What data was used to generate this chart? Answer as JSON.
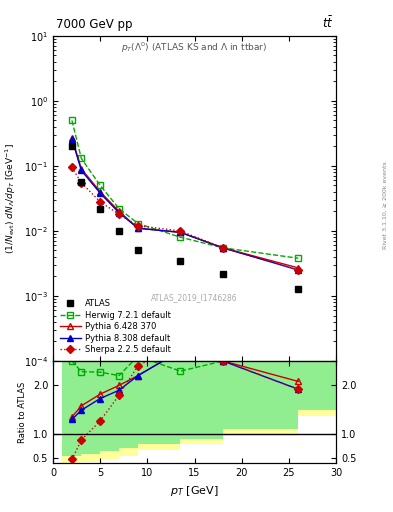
{
  "title_main": "7000 GeV pp",
  "title_right": "t#bar{t}",
  "subtitle": "p_{T}(#Lambda^{0}) (ATLAS KS and #Lambda in ttbar)",
  "watermark": "ATLAS_2019_I1746286",
  "xlabel": "p_{T} [GeV]",
  "ylabel_main": "(1/N_{evt}) dN_{#Lambda}/dp_{T} [GeV^{-1}]",
  "ylabel_ratio": "Ratio to ATLAS",
  "xlim": [
    0,
    30
  ],
  "ylim_main": [
    0.0001,
    10
  ],
  "ylim_ratio": [
    0.4,
    2.5
  ],
  "x_ticks": [
    0,
    5,
    10,
    15,
    20,
    25,
    30
  ],
  "atlas_x": [
    2,
    3,
    5,
    7,
    9,
    13.5,
    18,
    26
  ],
  "atlas_y": [
    0.2,
    0.057,
    0.022,
    0.01,
    0.005,
    0.0035,
    0.0022,
    0.0013
  ],
  "herwig_x": [
    2,
    3,
    5,
    7,
    9,
    13.5,
    18,
    26
  ],
  "herwig_y": [
    0.5,
    0.13,
    0.05,
    0.022,
    0.013,
    0.008,
    0.0055,
    0.0038
  ],
  "pythia6_x": [
    2,
    3,
    5,
    7,
    9,
    13.5,
    18,
    26
  ],
  "pythia6_y": [
    0.27,
    0.09,
    0.04,
    0.02,
    0.011,
    0.0095,
    0.0055,
    0.0027
  ],
  "pythia8_x": [
    2,
    3,
    5,
    7,
    9,
    13.5,
    18,
    26
  ],
  "pythia8_y": [
    0.26,
    0.085,
    0.038,
    0.019,
    0.011,
    0.0095,
    0.0055,
    0.0025
  ],
  "sherpa_x": [
    2,
    3,
    5,
    7,
    9,
    13.5,
    18,
    26
  ],
  "sherpa_y": [
    0.095,
    0.055,
    0.028,
    0.018,
    0.012,
    0.01,
    0.0055,
    0.0025
  ],
  "ratio_herwig": [
    2.5,
    2.28,
    2.27,
    2.2,
    2.6,
    2.29,
    2.5,
    2.92
  ],
  "ratio_pythia6": [
    1.35,
    1.58,
    1.82,
    2.0,
    2.2,
    2.71,
    2.5,
    2.08
  ],
  "ratio_pythia8": [
    1.3,
    1.49,
    1.73,
    1.9,
    2.2,
    2.71,
    2.5,
    1.92
  ],
  "ratio_sherpa": [
    0.48,
    0.88,
    1.27,
    1.8,
    2.4,
    2.86,
    2.5,
    1.92
  ],
  "bin_edges": [
    1,
    2,
    3,
    5,
    7,
    9,
    13.5,
    18,
    26,
    30
  ],
  "green_low": [
    0.55,
    0.55,
    0.6,
    0.65,
    0.72,
    0.8,
    0.9,
    1.1,
    1.5
  ],
  "green_high": [
    2.5,
    2.5,
    2.5,
    2.5,
    2.5,
    2.5,
    2.5,
    2.5,
    2.5
  ],
  "yellow_low": [
    0.4,
    0.4,
    0.42,
    0.48,
    0.55,
    0.68,
    0.8,
    0.96,
    1.38
  ],
  "yellow_high": [
    2.5,
    2.5,
    2.5,
    2.5,
    2.5,
    2.5,
    2.5,
    2.5,
    2.5
  ],
  "atlas_color": "#000000",
  "herwig_color": "#00aa00",
  "pythia6_color": "#cc0000",
  "pythia8_color": "#0000cc",
  "sherpa_color": "#cc0000",
  "green_color": "#90ee90",
  "yellow_color": "#ffff99",
  "right_label": "Rivet 3.1.10, ≥ 200k events"
}
